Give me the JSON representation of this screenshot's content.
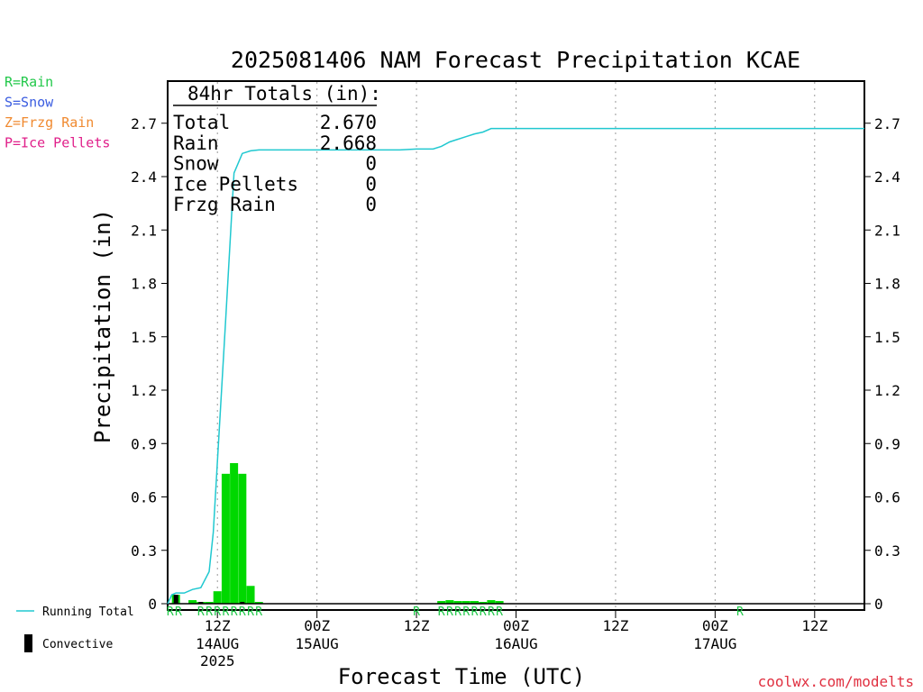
{
  "chart_data": {
    "type": "bar",
    "title": "2025081406 NAM Forecast Precipitation KCAE",
    "xlabel": "Forecast Time (UTC)",
    "ylabel": "Precipitation (in)",
    "ylim": [
      0,
      2.95
    ],
    "y_ticks": [
      "0",
      "0.3",
      "0.6",
      "0.9",
      "1.2",
      "1.5",
      "1.8",
      "2.1",
      "2.4",
      "2.7"
    ],
    "x_range_hours": [
      0,
      84
    ],
    "x_ticks": [
      {
        "hour": 6,
        "label": "12Z",
        "sub": "14AUG",
        "sub2": "2025"
      },
      {
        "hour": 18,
        "label": "00Z",
        "sub": "15AUG",
        "sub2": ""
      },
      {
        "hour": 30,
        "label": "12Z",
        "sub": "",
        "sub2": ""
      },
      {
        "hour": 42,
        "label": "00Z",
        "sub": "16AUG",
        "sub2": ""
      },
      {
        "hour": 54,
        "label": "12Z",
        "sub": "",
        "sub2": ""
      },
      {
        "hour": 66,
        "label": "00Z",
        "sub": "17AUG",
        "sub2": ""
      },
      {
        "hour": 78,
        "label": "12Z",
        "sub": "",
        "sub2": ""
      }
    ],
    "totals_box": {
      "header": "84hr Totals (in):",
      "rows": [
        {
          "label": "Total",
          "value": "2.670"
        },
        {
          "label": "Rain",
          "value": "2.668"
        },
        {
          "label": "Snow",
          "value": "0"
        },
        {
          "label": "Ice Pellets",
          "value": "0"
        },
        {
          "label": "Frzg Rain",
          "value": "0"
        }
      ]
    },
    "precip_type_legend": [
      {
        "text": "R=Rain",
        "color": "#22c84a"
      },
      {
        "text": "S=Snow",
        "color": "#3a5ce0"
      },
      {
        "text": "Z=Frzg Rain",
        "color": "#f08a30"
      },
      {
        "text": "P=Ice Pellets",
        "color": "#e0208a"
      }
    ],
    "series": [
      {
        "name": "Running Total",
        "type": "line",
        "color": "#20c8d0",
        "x": [
          0,
          0.5,
          1,
          2,
          3,
          4,
          5,
          5.5,
          6,
          7,
          8,
          9,
          10,
          11,
          12,
          14,
          16,
          18,
          20,
          22,
          24,
          26,
          28,
          30,
          32,
          33,
          34,
          35,
          36,
          37,
          38,
          39,
          40,
          42,
          48,
          54,
          60,
          66,
          72,
          78,
          84
        ],
        "y": [
          0,
          0.05,
          0.06,
          0.06,
          0.08,
          0.09,
          0.18,
          0.4,
          0.8,
          1.6,
          2.42,
          2.53,
          2.545,
          2.55,
          2.55,
          2.55,
          2.55,
          2.55,
          2.55,
          2.55,
          2.55,
          2.55,
          2.55,
          2.555,
          2.555,
          2.57,
          2.595,
          2.61,
          2.625,
          2.64,
          2.65,
          2.67,
          2.67,
          2.67,
          2.67,
          2.67,
          2.67,
          2.67,
          2.67,
          2.67,
          2.67
        ]
      },
      {
        "name": "Precipitation",
        "type": "bar",
        "color": "#00d800",
        "x": [
          1,
          3,
          4,
          5,
          6,
          7,
          8,
          9,
          10,
          11,
          33,
          34,
          35,
          36,
          37,
          38,
          39,
          40
        ],
        "y": [
          0.05,
          0.02,
          0.01,
          0.01,
          0.07,
          0.73,
          0.79,
          0.73,
          0.1,
          0.01,
          0.015,
          0.02,
          0.015,
          0.015,
          0.015,
          0.01,
          0.02,
          0.015
        ]
      },
      {
        "name": "Convective",
        "type": "bar",
        "color": "#000000",
        "x": [
          1,
          4,
          9
        ],
        "y": [
          0.05,
          0.01,
          0.01
        ]
      }
    ],
    "type_markers": [
      {
        "hour": 0.3,
        "text": "R"
      },
      {
        "hour": 1.3,
        "text": "R"
      },
      {
        "hour": 4,
        "text": "R"
      },
      {
        "hour": 5,
        "text": "R"
      },
      {
        "hour": 6,
        "text": "R"
      },
      {
        "hour": 7,
        "text": "R"
      },
      {
        "hour": 8,
        "text": "R"
      },
      {
        "hour": 9,
        "text": "R"
      },
      {
        "hour": 10,
        "text": "R"
      },
      {
        "hour": 11,
        "text": "R"
      },
      {
        "hour": 30,
        "text": "R"
      },
      {
        "hour": 33,
        "text": "R"
      },
      {
        "hour": 34,
        "text": "R"
      },
      {
        "hour": 35,
        "text": "R"
      },
      {
        "hour": 36,
        "text": "R"
      },
      {
        "hour": 37,
        "text": "R"
      },
      {
        "hour": 38,
        "text": "R"
      },
      {
        "hour": 39,
        "text": "R"
      },
      {
        "hour": 40,
        "text": "R"
      },
      {
        "hour": 69,
        "text": "R"
      }
    ],
    "legend_bottom": [
      {
        "text": "Running Total",
        "swatch": "line",
        "color": "#20c8d0"
      },
      {
        "text": "Convective",
        "swatch": "bar",
        "color": "#000000"
      }
    ],
    "grid": "vertical-dotted",
    "credit": "coolwx.com/modelts"
  }
}
